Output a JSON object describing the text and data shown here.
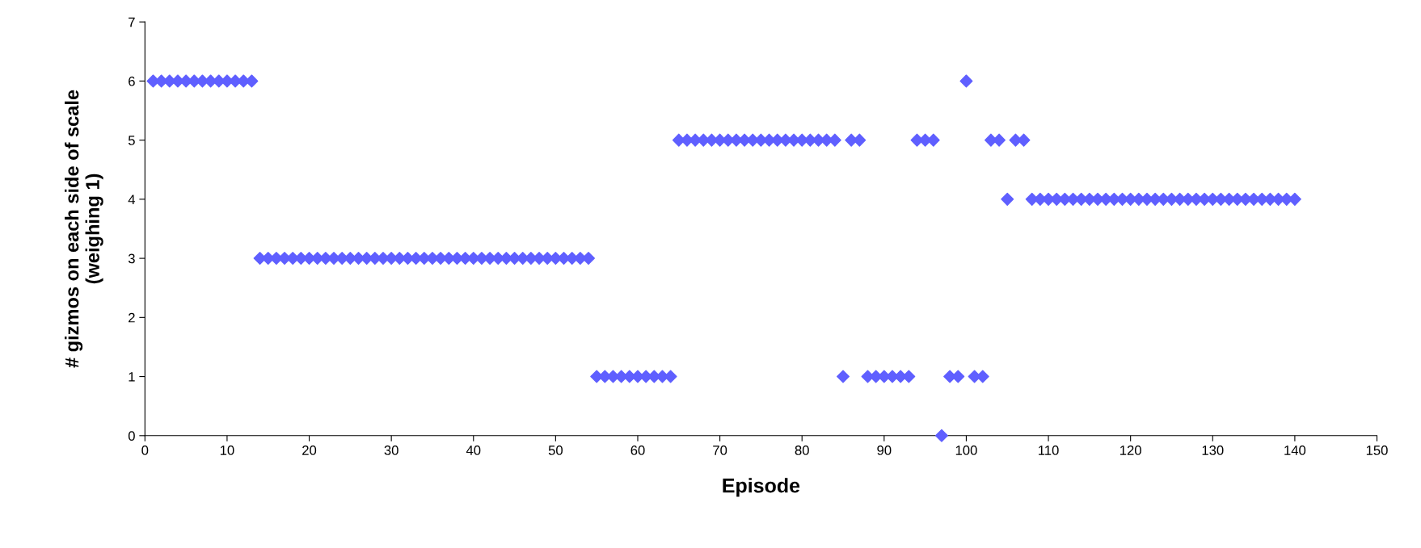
{
  "chart_data": {
    "type": "scatter",
    "xlabel": "Episode",
    "ylabel": "# gizmos on each side of scale\n(weighing 1)",
    "x": [
      1,
      2,
      3,
      4,
      5,
      6,
      7,
      8,
      9,
      10,
      11,
      12,
      13,
      14,
      15,
      16,
      17,
      18,
      19,
      20,
      21,
      22,
      23,
      24,
      25,
      26,
      27,
      28,
      29,
      30,
      31,
      32,
      33,
      34,
      35,
      36,
      37,
      38,
      39,
      40,
      41,
      42,
      43,
      44,
      45,
      46,
      47,
      48,
      49,
      50,
      51,
      52,
      53,
      54,
      55,
      56,
      57,
      58,
      59,
      60,
      61,
      62,
      63,
      64,
      65,
      66,
      67,
      68,
      69,
      70,
      71,
      72,
      73,
      74,
      75,
      76,
      77,
      78,
      79,
      80,
      81,
      82,
      83,
      84,
      85,
      86,
      87,
      88,
      89,
      90,
      91,
      92,
      93,
      94,
      95,
      96,
      97,
      98,
      99,
      100,
      101,
      102,
      103,
      104,
      105,
      106,
      107,
      108,
      109,
      110,
      111,
      112,
      113,
      114,
      115,
      116,
      117,
      118,
      119,
      120,
      121,
      122,
      123,
      124,
      125,
      126,
      127,
      128,
      129,
      130,
      131,
      132,
      133,
      134,
      135,
      136,
      137,
      138,
      139,
      140
    ],
    "series": [
      {
        "color": "#5f5fff",
        "values": [
          6,
          6,
          6,
          6,
          6,
          6,
          6,
          6,
          6,
          6,
          6,
          6,
          6,
          3,
          3,
          3,
          3,
          3,
          3,
          3,
          3,
          3,
          3,
          3,
          3,
          3,
          3,
          3,
          3,
          3,
          3,
          3,
          3,
          3,
          3,
          3,
          3,
          3,
          3,
          3,
          3,
          3,
          3,
          3,
          3,
          3,
          3,
          3,
          3,
          3,
          3,
          3,
          3,
          3,
          1,
          1,
          1,
          1,
          1,
          1,
          1,
          1,
          1,
          1,
          5,
          5,
          5,
          5,
          5,
          5,
          5,
          5,
          5,
          5,
          5,
          5,
          5,
          5,
          5,
          5,
          5,
          5,
          5,
          5,
          1,
          5,
          5,
          1,
          1,
          1,
          1,
          1,
          1,
          5,
          5,
          5,
          0,
          1,
          1,
          6,
          1,
          1,
          5,
          5,
          4,
          5,
          5,
          4,
          4,
          4,
          4,
          4,
          4,
          4,
          4,
          4,
          4,
          4,
          4,
          4,
          4,
          4,
          4,
          4,
          4,
          4,
          4,
          4,
          4,
          4,
          4,
          4,
          4,
          4,
          4,
          4,
          4,
          4,
          4,
          4
        ]
      }
    ],
    "xlim": [
      0,
      150
    ],
    "xticks": [
      0,
      10,
      20,
      30,
      40,
      50,
      60,
      70,
      80,
      90,
      100,
      110,
      120,
      130,
      140,
      150
    ],
    "ylim": [
      0,
      7
    ],
    "yticks": [
      0,
      1,
      2,
      3,
      4,
      5,
      6,
      7
    ],
    "marker": "diamond",
    "grid": false,
    "legend": false
  }
}
